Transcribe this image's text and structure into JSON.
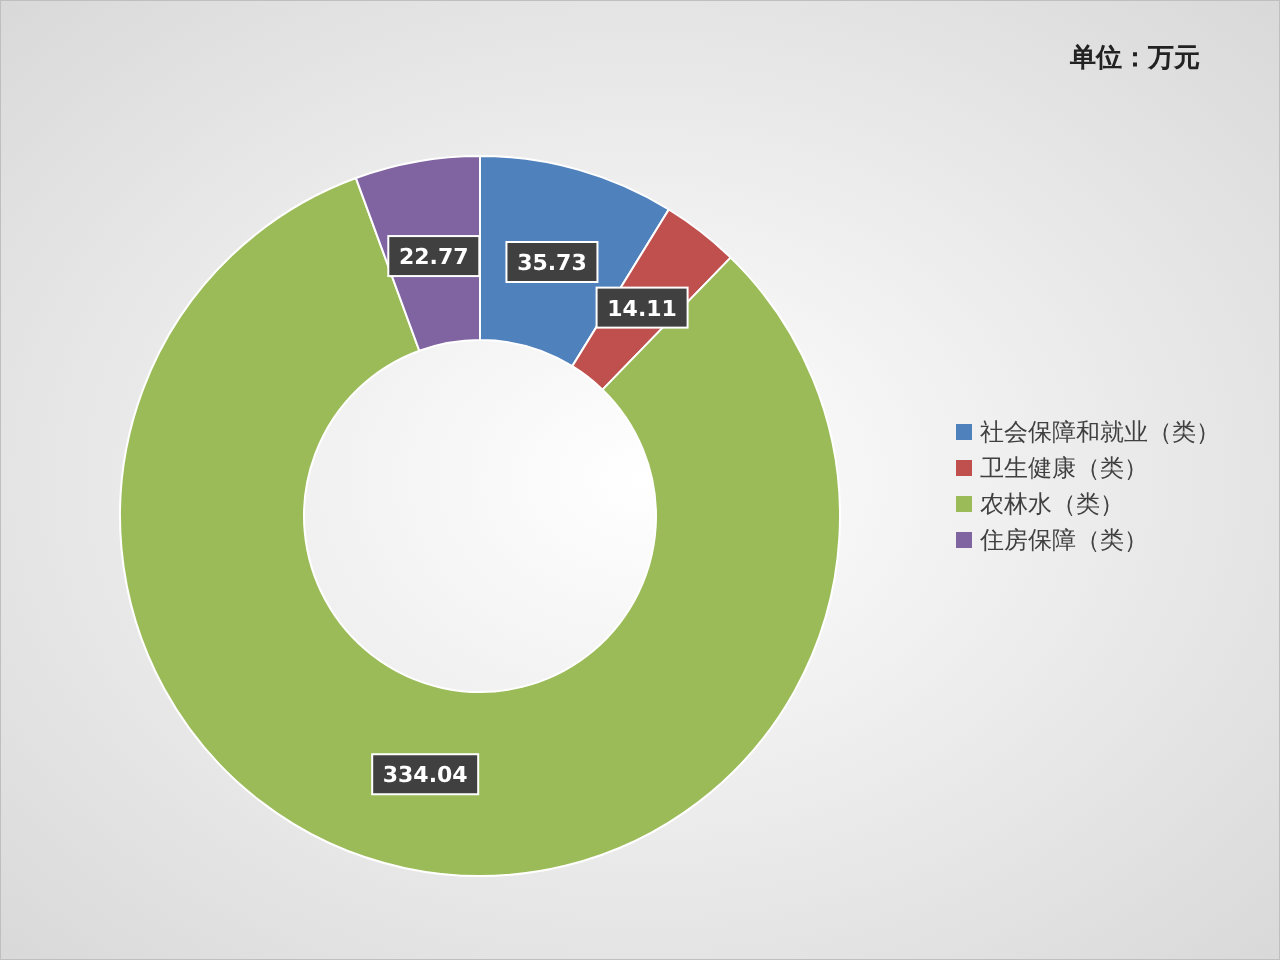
{
  "chart_data": {
    "type": "donut",
    "annotations": [
      "单位：万元"
    ],
    "categories": [
      "社会保障和就业（类）",
      "卫生健康（类）",
      "农林水（类）",
      "住房保障（类）"
    ],
    "values": [
      35.73,
      14.11,
      334.04,
      22.77
    ],
    "colors": [
      "#4f81bd",
      "#c0504d",
      "#9bbb59",
      "#8064a2"
    ],
    "data_labels": true,
    "legend": "right"
  }
}
